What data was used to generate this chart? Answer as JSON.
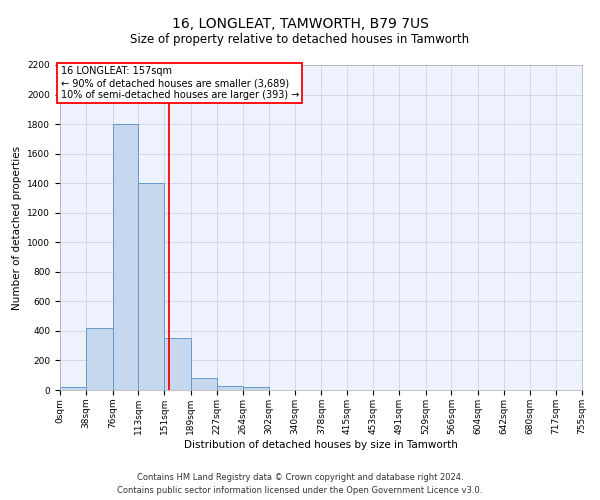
{
  "title": "16, LONGLEAT, TAMWORTH, B79 7US",
  "subtitle": "Size of property relative to detached houses in Tamworth",
  "xlabel": "Distribution of detached houses by size in Tamworth",
  "ylabel": "Number of detached properties",
  "bar_color": "#c5d8ed",
  "bar_edge_color": "#6699cc",
  "red_line_x": 157,
  "annotation_title": "16 LONGLEAT: 157sqm",
  "annotation_line1": "← 90% of detached houses are smaller (3,689)",
  "annotation_line2": "10% of semi-detached houses are larger (393) →",
  "footnote1": "Contains HM Land Registry data © Crown copyright and database right 2024.",
  "footnote2": "Contains public sector information licensed under the Open Government Licence v3.0.",
  "bin_edges": [
    0,
    38,
    76,
    113,
    151,
    189,
    227,
    264,
    302,
    340,
    378,
    415,
    453,
    491,
    529,
    566,
    604,
    642,
    680,
    717,
    755
  ],
  "bin_counts": [
    20,
    420,
    1800,
    1400,
    350,
    80,
    30,
    20,
    0,
    0,
    0,
    0,
    0,
    0,
    0,
    0,
    0,
    0,
    0,
    0
  ],
  "tick_labels": [
    "0sqm",
    "38sqm",
    "76sqm",
    "113sqm",
    "151sqm",
    "189sqm",
    "227sqm",
    "264sqm",
    "302sqm",
    "340sqm",
    "378sqm",
    "415sqm",
    "453sqm",
    "491sqm",
    "529sqm",
    "566sqm",
    "604sqm",
    "642sqm",
    "680sqm",
    "717sqm",
    "755sqm"
  ],
  "ylim": [
    0,
    2200
  ],
  "yticks": [
    0,
    200,
    400,
    600,
    800,
    1000,
    1200,
    1400,
    1600,
    1800,
    2000,
    2200
  ],
  "background_color": "#eef2fc",
  "grid_color": "#c8cce8",
  "title_fontsize": 10,
  "subtitle_fontsize": 8.5,
  "ylabel_fontsize": 7.5,
  "xlabel_fontsize": 7.5,
  "tick_fontsize": 6.5,
  "footnote_fontsize": 6,
  "annotation_fontsize": 7
}
